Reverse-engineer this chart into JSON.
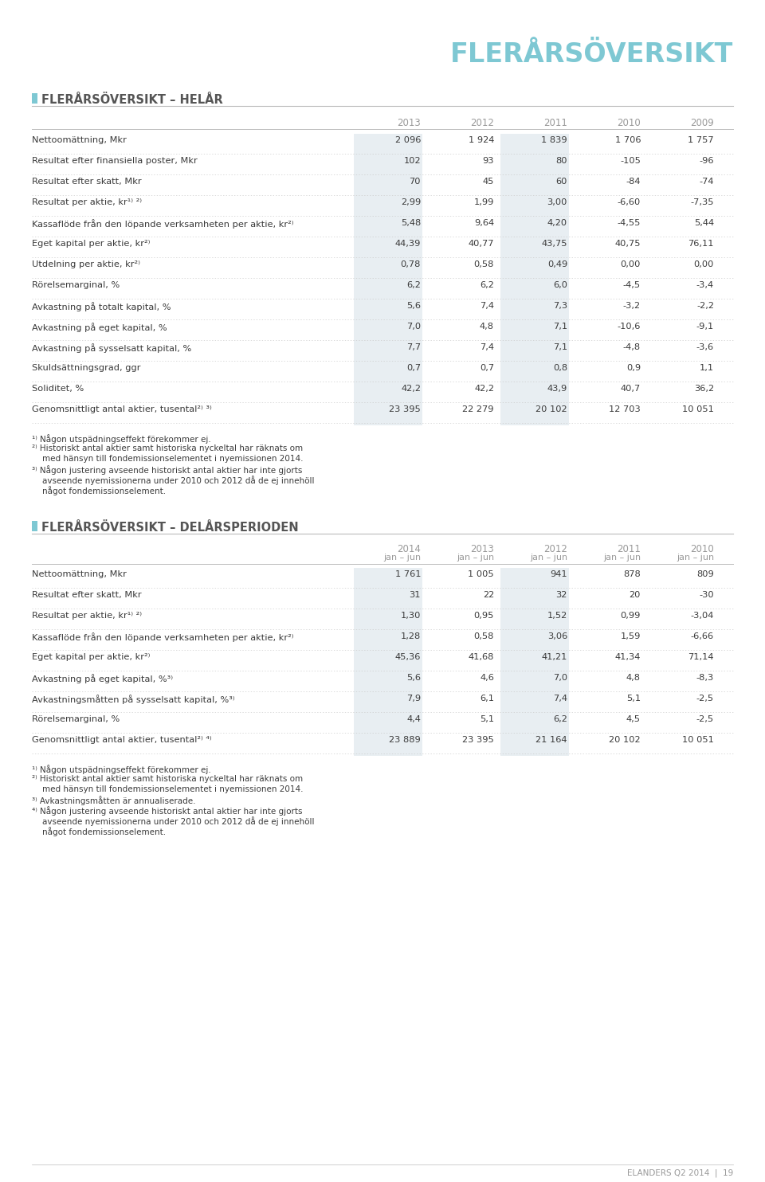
{
  "page_title": "FLERÅRSÖVERSIKT",
  "page_title_color": "#7ec8d3",
  "background_color": "#ffffff",
  "section1_title": "FLERÅRSÖVERSIKT – HELÅR",
  "section2_title": "FLERÅRSÖVERSIKT – DELÅRSPERIODEN",
  "section_title_color": "#555555",
  "square_color": "#7ec8d3",
  "header_color": "#999999",
  "table1_years": [
    "2013",
    "2012",
    "2011",
    "2010",
    "2009"
  ],
  "table1_rows": [
    {
      "label": "Nettoomättning, Mkr",
      "values": [
        "2 096",
        "1 924",
        "1 839",
        "1 706",
        "1 757"
      ]
    },
    {
      "label": "Resultat efter finansiella poster, Mkr",
      "values": [
        "102",
        "93",
        "80",
        "-105",
        "-96"
      ]
    },
    {
      "label": "Resultat efter skatt, Mkr",
      "values": [
        "70",
        "45",
        "60",
        "-84",
        "-74"
      ]
    },
    {
      "label": "Resultat per aktie, kr¹⁾ ²⁾",
      "values": [
        "2,99",
        "1,99",
        "3,00",
        "-6,60",
        "-7,35"
      ]
    },
    {
      "label": "Kassaflöde från den löpande verksamheten per aktie, kr²⁾",
      "values": [
        "5,48",
        "9,64",
        "4,20",
        "-4,55",
        "5,44"
      ]
    },
    {
      "label": "Eget kapital per aktie, kr²⁾",
      "values": [
        "44,39",
        "40,77",
        "43,75",
        "40,75",
        "76,11"
      ]
    },
    {
      "label": "Utdelning per aktie, kr²⁾",
      "values": [
        "0,78",
        "0,58",
        "0,49",
        "0,00",
        "0,00"
      ]
    },
    {
      "label": "Rörelsemarginal, %",
      "values": [
        "6,2",
        "6,2",
        "6,0",
        "-4,5",
        "-3,4"
      ]
    },
    {
      "label": "Avkastning på totalt kapital, %",
      "values": [
        "5,6",
        "7,4",
        "7,3",
        "-3,2",
        "-2,2"
      ]
    },
    {
      "label": "Avkastning på eget kapital, %",
      "values": [
        "7,0",
        "4,8",
        "7,1",
        "-10,6",
        "-9,1"
      ]
    },
    {
      "label": "Avkastning på sysselsatt kapital, %",
      "values": [
        "7,7",
        "7,4",
        "7,1",
        "-4,8",
        "-3,6"
      ]
    },
    {
      "label": "Skuldsättningsgrad, ggr",
      "values": [
        "0,7",
        "0,7",
        "0,8",
        "0,9",
        "1,1"
      ]
    },
    {
      "label": "Soliditet, %",
      "values": [
        "42,2",
        "42,2",
        "43,9",
        "40,7",
        "36,2"
      ]
    },
    {
      "label": "Genomsnittligt antal aktier, tusental²⁾ ³⁾",
      "values": [
        "23 395",
        "22 279",
        "20 102",
        "12 703",
        "10 051"
      ]
    }
  ],
  "footnotes1": [
    "¹⁾ Någon utspädningseffekt förekommer ej.",
    "²⁾ Historiskt antal aktier samt historiska nyckeltal har räknats om",
    "    med hänsyn till fondemissionselementet i nyemissionen 2014.",
    "³⁾ Någon justering avseende historiskt antal aktier har inte gjorts",
    "    avseende nyemissionerna under 2010 och 2012 då de ej innehöll",
    "    något fondemissionselement."
  ],
  "table2_years_line1": [
    "2014",
    "2013",
    "2012",
    "2011",
    "2010"
  ],
  "table2_years_line2": [
    "jan – jun",
    "jan – jun",
    "jan – jun",
    "jan – jun",
    "jan – jun"
  ],
  "table2_rows": [
    {
      "label": "Nettoomättning, Mkr",
      "values": [
        "1 761",
        "1 005",
        "941",
        "878",
        "809"
      ]
    },
    {
      "label": "Resultat efter skatt, Mkr",
      "values": [
        "31",
        "22",
        "32",
        "20",
        "-30"
      ]
    },
    {
      "label": "Resultat per aktie, kr¹⁾ ²⁾",
      "values": [
        "1,30",
        "0,95",
        "1,52",
        "0,99",
        "-3,04"
      ]
    },
    {
      "label": "Kassaflöde från den löpande verksamheten per aktie, kr²⁾",
      "values": [
        "1,28",
        "0,58",
        "3,06",
        "1,59",
        "-6,66"
      ]
    },
    {
      "label": "Eget kapital per aktie, kr²⁾",
      "values": [
        "45,36",
        "41,68",
        "41,21",
        "41,34",
        "71,14"
      ]
    },
    {
      "label": "Avkastning på eget kapital, %³⁾",
      "values": [
        "5,6",
        "4,6",
        "7,0",
        "4,8",
        "-8,3"
      ]
    },
    {
      "label": "Avkastningsmåtten på sysselsatt kapital, %³⁾",
      "values": [
        "7,9",
        "6,1",
        "7,4",
        "5,1",
        "-2,5"
      ]
    },
    {
      "label": "Rörelsemarginal, %",
      "values": [
        "4,4",
        "5,1",
        "6,2",
        "4,5",
        "-2,5"
      ]
    },
    {
      "label": "Genomsnittligt antal aktier, tusental²⁾ ⁴⁾",
      "values": [
        "23 889",
        "23 395",
        "21 164",
        "20 102",
        "10 051"
      ]
    }
  ],
  "footnotes2": [
    "¹⁾ Någon utspädningseffekt förekommer ej.",
    "²⁾ Historiskt antal aktier samt historiska nyckeltal har räknats om",
    "    med hänsyn till fondemissionselementet i nyemissionen 2014.",
    "³⁾ Avkastningsmåtten är annualiserade.",
    "⁴⁾ Någon justering avseende historiskt antal aktier har inte gjorts",
    "    avseende nyemissionerna under 2010 och 2012 då de ej innehöll",
    "    något fondemissionselement."
  ],
  "footer_text": "ELANDERS Q2 2014  |  19",
  "text_color": "#3a3a3a",
  "value_color": "#3a3a3a",
  "header_fontsize": 8.5,
  "label_fontsize": 8.2,
  "value_fontsize": 8.2,
  "footnote_fontsize": 7.5,
  "shaded_col_color": "#e8eef2",
  "line_color": "#cccccc",
  "solid_line_color": "#bbbbbb"
}
